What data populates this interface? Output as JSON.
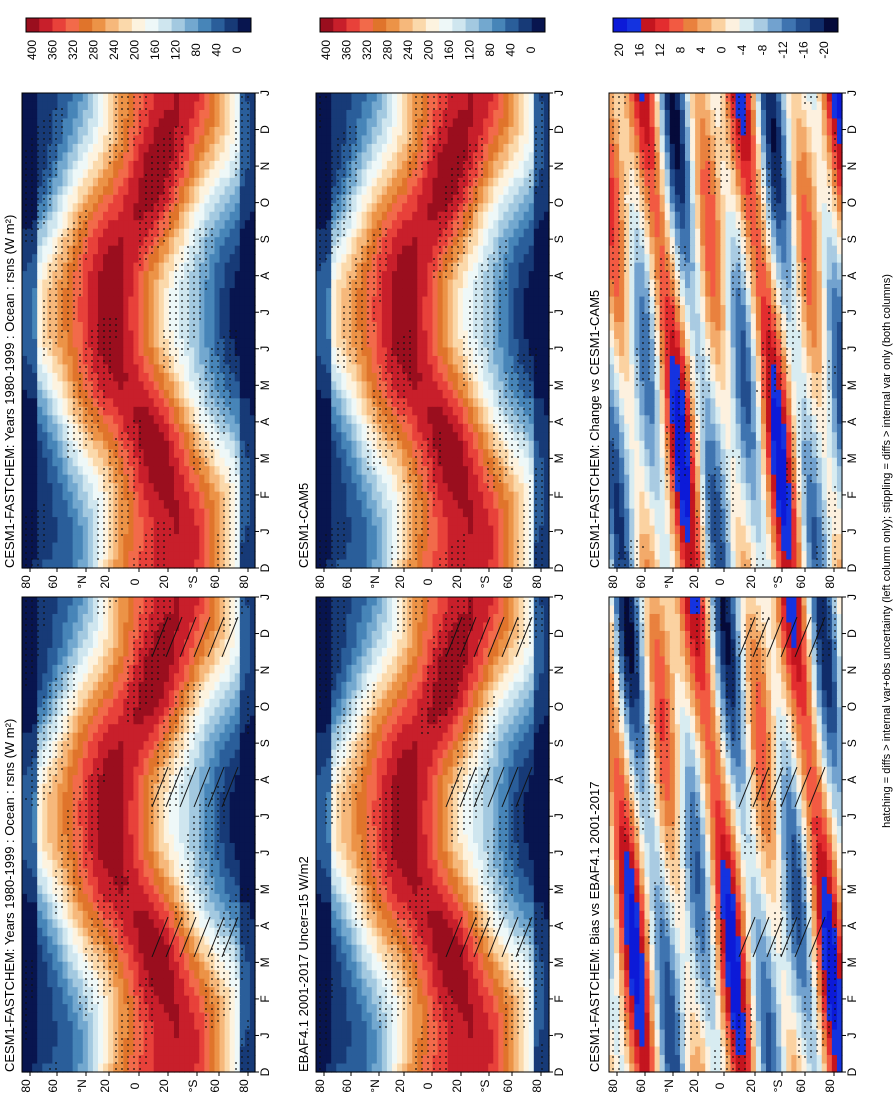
{
  "figure": {
    "footer": "hatching = diffs > internal var+obs uncertainty (left column only); stippling = diffs > internal var only (both columns)"
  },
  "palettes": {
    "absolute": [
      "#08154f",
      "#173a77",
      "#2a5e9a",
      "#4785b8",
      "#73a8cf",
      "#a3c9e0",
      "#cfe6ef",
      "#eef8f8",
      "#fdf3df",
      "#fbd9ab",
      "#f6b87b",
      "#ec9347",
      "#e0742b",
      "#f26a4a",
      "#e8413a",
      "#c81f2b",
      "#9a0e1e"
    ],
    "diff": [
      "#050a3a",
      "#102c6a",
      "#234e8e",
      "#3f74b0",
      "#72a2cf",
      "#a9cbe2",
      "#d8ecf1",
      "#fdf1df",
      "#fbd2a1",
      "#f3aa6a",
      "#e9813e",
      "#f25a42",
      "#e32d2f",
      "#c4151f",
      "#1433e0",
      "#0c1ad8"
    ]
  },
  "panels": [
    {
      "id": "fastchem-1980-1999",
      "title": "CESM1-FASTCHEM: Years 1980-1999 : Ocean : rsns (W m²)",
      "palette": "absolute",
      "hatched": true,
      "colorbar_ticks": [
        "0",
        "40",
        "80",
        "120",
        "160",
        "200",
        "240",
        "280",
        "320",
        "360",
        "400"
      ]
    },
    {
      "id": "ebaf41-2001-2017",
      "title": "EBAF4.1 2001-2017 Uncer=15 W/m2",
      "palette": "absolute",
      "hatched": true,
      "colorbar_ticks": [
        "0",
        "40",
        "80",
        "120",
        "160",
        "200",
        "240",
        "280",
        "320",
        "360",
        "400"
      ]
    },
    {
      "id": "fastchem-bias-vs-ebaf",
      "title": "CESM1-FASTCHEM: Bias vs EBAF4.1 2001-2017",
      "palette": "diff",
      "hatched": true,
      "colorbar_ticks": [
        "-20",
        "-16",
        "-12",
        "-8",
        "-4",
        "0",
        "4",
        "8",
        "12",
        "16",
        "20"
      ]
    },
    {
      "id": "fastchem-1980-1999-right",
      "title": "CESM1-FASTCHEM: Years 1980-1999 : Ocean : rsns (W m²)",
      "palette": "absolute",
      "hatched": false,
      "colorbar_ticks": [
        "0",
        "40",
        "80",
        "120",
        "160",
        "200",
        "240",
        "280",
        "320",
        "360",
        "400"
      ]
    },
    {
      "id": "cesm1-cam5",
      "title": "CESM1-CAM5",
      "palette": "absolute",
      "hatched": false,
      "colorbar_ticks": [
        "0",
        "40",
        "80",
        "120",
        "160",
        "200",
        "240",
        "280",
        "320",
        "360",
        "400"
      ]
    },
    {
      "id": "fastchem-change-vs-cam5",
      "title": "CESM1-FASTCHEM: Change vs CESM1-CAM5",
      "palette": "diff",
      "hatched": false,
      "colorbar_ticks": [
        "-20",
        "-16",
        "-12",
        "-8",
        "-4",
        "0",
        "4",
        "8",
        "12",
        "16",
        "20"
      ]
    }
  ],
  "chart_data": {
    "type": "heatmap",
    "x": [
      "D",
      "J",
      "F",
      "M",
      "A",
      "M",
      "J",
      "J",
      "A",
      "S",
      "O",
      "N",
      "D",
      "J"
    ],
    "y_ticks": [
      "80",
      "60",
      "°N",
      "20",
      "0",
      "20",
      "°S",
      "60",
      "80"
    ],
    "ylim": [
      -90,
      90
    ],
    "colorbar_absolute": [
      0,
      400
    ],
    "colorbar_diff": [
      -20,
      20
    ]
  }
}
